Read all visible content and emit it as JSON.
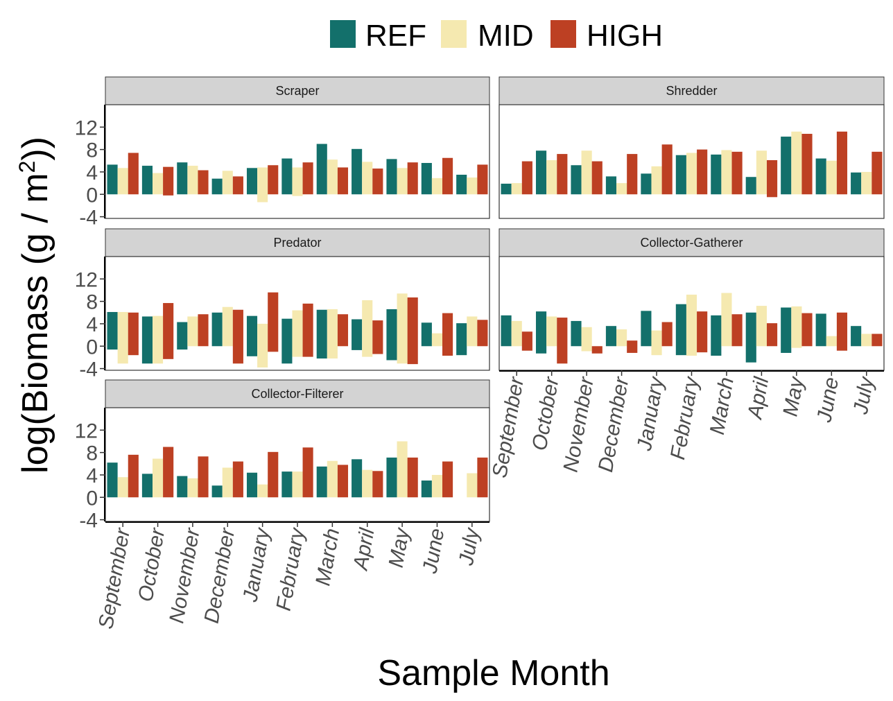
{
  "chart_data": {
    "type": "bar",
    "subtype": "floating-range",
    "ylabel_prefix": "log",
    "ylabel_main": "Biomass (g / m",
    "ylabel_sup": "2",
    "ylabel_suffix": ")",
    "xlabel": "Sample Month",
    "categories": [
      "September",
      "October",
      "November",
      "December",
      "January",
      "February",
      "March",
      "April",
      "May",
      "June",
      "July"
    ],
    "ylim": [
      -4.3,
      16
    ],
    "yticks": [
      -4,
      0,
      4,
      8,
      12
    ],
    "ytick_labels": [
      "-4",
      "0",
      "4",
      "8",
      "12"
    ],
    "legend": {
      "position": "top",
      "entries": [
        {
          "name": "REF",
          "color": "#13706b"
        },
        {
          "name": "MID",
          "color": "#f5e9b0"
        },
        {
          "name": "HIGH",
          "color": "#bd4023"
        }
      ]
    },
    "panels": [
      {
        "title": "Scraper",
        "series": [
          {
            "name": "REF",
            "values": [
              [
                0,
                5.3
              ],
              [
                0,
                5.1
              ],
              [
                0,
                5.7
              ],
              [
                0,
                2.8
              ],
              [
                0,
                4.7
              ],
              [
                0,
                6.4
              ],
              [
                0,
                9.0
              ],
              [
                0,
                8.1
              ],
              [
                0,
                6.3
              ],
              [
                0,
                5.6
              ],
              [
                0,
                3.5
              ]
            ]
          },
          {
            "name": "MID",
            "values": [
              [
                0,
                4.7
              ],
              [
                0,
                3.8
              ],
              [
                0,
                5.1
              ],
              [
                0,
                4.2
              ],
              [
                -1.4,
                4.8
              ],
              [
                -0.3,
                4.8
              ],
              [
                0,
                6.2
              ],
              [
                0,
                5.8
              ],
              [
                0,
                4.7
              ],
              [
                0,
                2.9
              ],
              [
                0,
                3.0
              ]
            ]
          },
          {
            "name": "HIGH",
            "values": [
              [
                0,
                7.4
              ],
              [
                -0.2,
                4.9
              ],
              [
                0,
                4.3
              ],
              [
                0,
                3.2
              ],
              [
                0,
                5.2
              ],
              [
                0,
                5.7
              ],
              [
                0,
                4.8
              ],
              [
                0,
                4.6
              ],
              [
                0,
                5.7
              ],
              [
                0,
                6.5
              ],
              [
                0,
                5.3
              ]
            ]
          }
        ]
      },
      {
        "title": "Shredder",
        "series": [
          {
            "name": "REF",
            "values": [
              [
                0,
                1.9
              ],
              [
                0,
                7.8
              ],
              [
                0,
                5.2
              ],
              [
                0,
                3.2
              ],
              [
                0,
                3.7
              ],
              [
                0,
                7.0
              ],
              [
                0,
                7.1
              ],
              [
                0,
                3.1
              ],
              [
                0,
                10.3
              ],
              [
                0,
                6.4
              ],
              [
                0,
                3.9
              ]
            ]
          },
          {
            "name": "MID",
            "values": [
              [
                0,
                2.0
              ],
              [
                0,
                6.1
              ],
              [
                0,
                7.8
              ],
              [
                0,
                2.0
              ],
              [
                0,
                5.0
              ],
              [
                0,
                7.4
              ],
              [
                0,
                7.9
              ],
              [
                0,
                7.8
              ],
              [
                0,
                11.2
              ],
              [
                0,
                6.0
              ],
              [
                0,
                4.0
              ]
            ]
          },
          {
            "name": "HIGH",
            "values": [
              [
                0,
                5.9
              ],
              [
                0,
                7.2
              ],
              [
                0,
                5.9
              ],
              [
                0,
                7.2
              ],
              [
                0,
                8.9
              ],
              [
                0,
                8.0
              ],
              [
                0,
                7.6
              ],
              [
                -0.5,
                6.1
              ],
              [
                0,
                10.8
              ],
              [
                0,
                11.2
              ],
              [
                0,
                7.6
              ]
            ]
          }
        ]
      },
      {
        "title": "Predator",
        "series": [
          {
            "name": "REF",
            "values": [
              [
                -0.6,
                6.1
              ],
              [
                -3.1,
                5.3
              ],
              [
                -0.6,
                4.3
              ],
              [
                0,
                6.0
              ],
              [
                -1.8,
                5.4
              ],
              [
                -3.1,
                4.9
              ],
              [
                -2.2,
                6.5
              ],
              [
                -0.7,
                4.8
              ],
              [
                -2.5,
                6.6
              ],
              [
                0,
                4.2
              ],
              [
                -1.6,
                4.1
              ]
            ]
          },
          {
            "name": "MID",
            "values": [
              [
                -3.1,
                6.1
              ],
              [
                -3.1,
                5.4
              ],
              [
                0,
                5.3
              ],
              [
                0,
                7.0
              ],
              [
                -3.8,
                4.0
              ],
              [
                -1.9,
                6.4
              ],
              [
                -2.2,
                6.6
              ],
              [
                -1.9,
                8.2
              ],
              [
                -3.1,
                9.4
              ],
              [
                0,
                2.3
              ],
              [
                0,
                5.3
              ]
            ]
          },
          {
            "name": "HIGH",
            "values": [
              [
                -1.6,
                6.0
              ],
              [
                -2.3,
                7.7
              ],
              [
                0,
                5.7
              ],
              [
                -3.1,
                6.5
              ],
              [
                -1.0,
                9.6
              ],
              [
                -1.9,
                7.6
              ],
              [
                0,
                5.7
              ],
              [
                -1.4,
                4.6
              ],
              [
                -3.2,
                8.7
              ],
              [
                -1.7,
                5.9
              ],
              [
                0,
                4.7
              ]
            ]
          }
        ]
      },
      {
        "title": "Collector-Gatherer",
        "series": [
          {
            "name": "REF",
            "values": [
              [
                0,
                5.5
              ],
              [
                -1.3,
                6.2
              ],
              [
                0,
                4.5
              ],
              [
                0,
                3.6
              ],
              [
                0,
                6.3
              ],
              [
                -1.6,
                7.5
              ],
              [
                -1.7,
                5.5
              ],
              [
                -2.9,
                6.0
              ],
              [
                -1.2,
                6.9
              ],
              [
                0,
                5.8
              ],
              [
                0,
                3.6
              ]
            ]
          },
          {
            "name": "MID",
            "values": [
              [
                0,
                4.5
              ],
              [
                0,
                5.3
              ],
              [
                -0.9,
                3.4
              ],
              [
                0,
                3.0
              ],
              [
                -1.6,
                2.8
              ],
              [
                -1.7,
                9.2
              ],
              [
                0,
                9.5
              ],
              [
                0,
                7.2
              ],
              [
                -0.3,
                7.1
              ],
              [
                0,
                1.8
              ],
              [
                0,
                2.2
              ]
            ]
          },
          {
            "name": "HIGH",
            "values": [
              [
                -0.8,
                2.6
              ],
              [
                -3.1,
                5.1
              ],
              [
                -1.3,
                0
              ],
              [
                -1.2,
                1.0
              ],
              [
                0,
                4.3
              ],
              [
                -1.1,
                6.2
              ],
              [
                0,
                5.7
              ],
              [
                0,
                4.1
              ],
              [
                0,
                5.9
              ],
              [
                -0.8,
                6.0
              ],
              [
                0,
                2.2
              ]
            ]
          }
        ]
      },
      {
        "title": "Collector-Filterer",
        "series": [
          {
            "name": "REF",
            "values": [
              [
                0,
                6.2
              ],
              [
                0,
                4.2
              ],
              [
                0,
                3.8
              ],
              [
                0,
                2.1
              ],
              [
                0,
                4.4
              ],
              [
                0,
                4.6
              ],
              [
                0,
                5.5
              ],
              [
                0,
                6.8
              ],
              [
                0,
                7.1
              ],
              [
                0,
                3.0
              ],
              [
                0,
                0
              ]
            ]
          },
          {
            "name": "MID",
            "values": [
              [
                0,
                3.6
              ],
              [
                0,
                6.9
              ],
              [
                0,
                3.4
              ],
              [
                0,
                5.3
              ],
              [
                0,
                2.3
              ],
              [
                0,
                4.6
              ],
              [
                0,
                6.5
              ],
              [
                0,
                4.9
              ],
              [
                0,
                10.0
              ],
              [
                0,
                4.0
              ],
              [
                0,
                4.3
              ]
            ]
          },
          {
            "name": "HIGH",
            "values": [
              [
                0,
                7.6
              ],
              [
                0,
                9.0
              ],
              [
                0,
                7.3
              ],
              [
                0,
                6.4
              ],
              [
                0,
                8.1
              ],
              [
                0,
                8.9
              ],
              [
                0,
                5.8
              ],
              [
                0,
                4.7
              ],
              [
                0,
                7.1
              ],
              [
                0,
                6.4
              ],
              [
                0,
                7.1
              ]
            ]
          }
        ]
      }
    ]
  }
}
